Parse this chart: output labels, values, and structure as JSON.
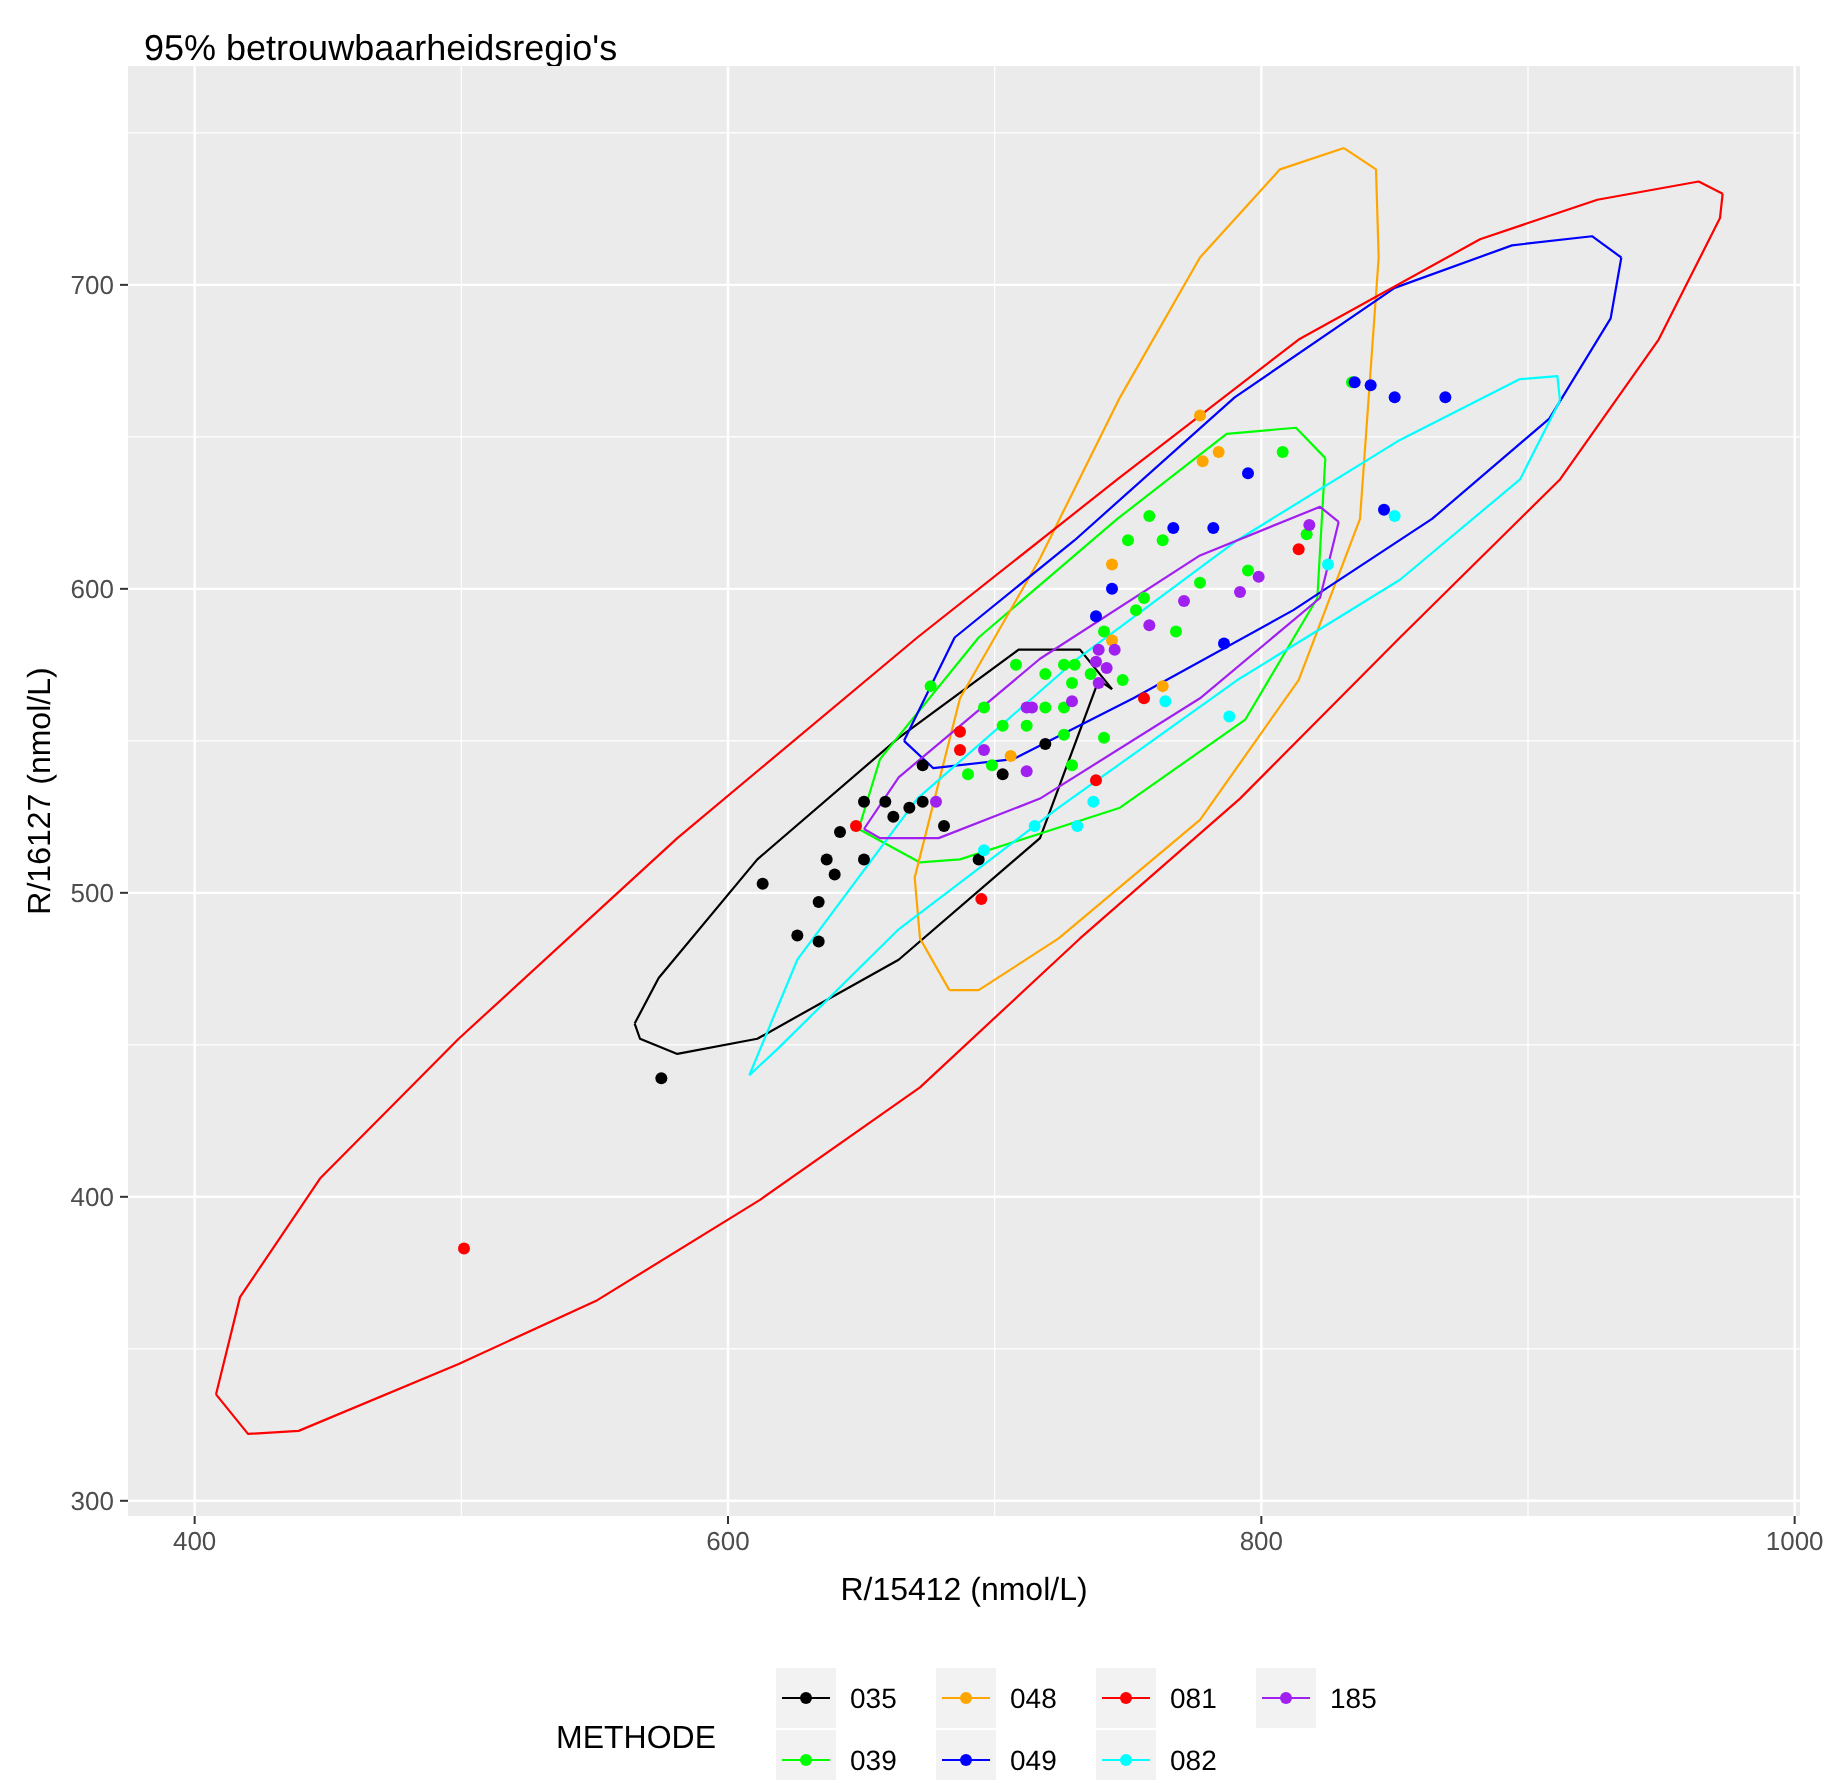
{
  "chart_data": {
    "type": "scatter",
    "title": "95% betrouwbaarheidsregio's",
    "xlabel": "R/15412 (nmol/L)",
    "ylabel": "R/16127 (nmol/L)",
    "legend_title": "METHODE",
    "legend": "bottom",
    "grid": true,
    "marker": "circle",
    "xlim": [
      375,
      1002
    ],
    "ylim": [
      295,
      772
    ],
    "xticks": [
      400,
      600,
      800,
      1000
    ],
    "yticks": [
      300,
      400,
      500,
      600,
      700
    ],
    "series": [
      {
        "name": "035",
        "color": "#000000",
        "x": [
          575,
          613,
          626,
          634,
          634,
          640,
          637,
          642,
          651,
          651,
          659,
          662,
          668,
          673,
          681,
          694,
          673,
          703,
          719
        ],
        "values": [
          439,
          503,
          486,
          484,
          497,
          506,
          511,
          520,
          511,
          530,
          530,
          525,
          528,
          530,
          522,
          511,
          542,
          539,
          549
        ]
      },
      {
        "name": "039",
        "color": "#00ff00",
        "x": [
          834,
          808,
          758,
          750,
          763,
          756,
          777,
          817,
          676,
          708,
          719,
          726,
          730,
          729,
          736,
          696,
          703,
          712,
          719,
          726,
          726,
          741,
          741,
          690,
          699,
          729,
          753,
          748,
          768,
          795
        ],
        "values": [
          668,
          645,
          624,
          616,
          616,
          597,
          602,
          618,
          568,
          575,
          572,
          575,
          575,
          569,
          572,
          561,
          555,
          555,
          561,
          561,
          552,
          551,
          586,
          539,
          542,
          542,
          593,
          570,
          586,
          606
        ]
      },
      {
        "name": "048",
        "color": "#ffa500",
        "x": [
          706,
          777,
          784,
          778,
          744,
          763,
          744
        ],
        "values": [
          545,
          657,
          645,
          642,
          608,
          568,
          583
        ]
      },
      {
        "name": "049",
        "color": "#0000ff",
        "x": [
          835,
          841,
          850,
          869,
          846,
          795,
          767,
          782,
          744,
          738,
          786
        ],
        "values": [
          668,
          667,
          663,
          663,
          626,
          638,
          620,
          620,
          600,
          591,
          582
        ]
      },
      {
        "name": "081",
        "color": "#ff0000",
        "x": [
          501,
          648,
          687,
          687,
          695,
          756,
          738,
          814
        ],
        "values": [
          383,
          522,
          553,
          547,
          498,
          564,
          537,
          613
        ]
      },
      {
        "name": "082",
        "color": "#00ffff",
        "x": [
          850,
          825,
          788,
          764,
          737,
          715,
          731,
          696
        ],
        "values": [
          624,
          608,
          558,
          563,
          530,
          522,
          522,
          514
        ]
      },
      {
        "name": "185",
        "color": "#a020f0",
        "x": [
          678,
          696,
          712,
          712,
          714,
          729,
          738,
          739,
          739,
          745,
          758,
          771,
          792,
          799,
          818,
          742
        ],
        "values": [
          530,
          547,
          540,
          561,
          561,
          563,
          576,
          580,
          569,
          580,
          588,
          596,
          599,
          604,
          621,
          574
        ]
      },
      {
        "type": "line",
        "marker": "none",
        "color": "#000000",
        "x": [
          565,
          567,
          581,
          611,
          664,
          717,
          739,
          744
        ],
        "values": [
          457,
          452,
          447,
          452,
          478,
          518,
          570,
          567
        ]
      },
      {
        "type": "line",
        "marker": "none",
        "color": "#000000",
        "x": [
          565,
          574,
          611,
          664,
          709,
          732,
          744
        ],
        "values": [
          457,
          472,
          511,
          551,
          580,
          580,
          567
        ]
      },
      {
        "type": "line",
        "marker": "none",
        "color": "#00ff00",
        "x": [
          649,
          672,
          687,
          747,
          794,
          821,
          824
        ],
        "values": [
          521,
          510,
          511,
          528,
          557,
          597,
          643
        ]
      },
      {
        "type": "line",
        "marker": "none",
        "color": "#00ff00",
        "x": [
          649,
          657,
          694,
          746,
          787,
          813,
          824
        ],
        "values": [
          521,
          544,
          584,
          623,
          651,
          653,
          643
        ]
      },
      {
        "type": "line",
        "marker": "none",
        "color": "#ffa500",
        "x": [
          683,
          672,
          670,
          687,
          717,
          747,
          777,
          807,
          831
        ],
        "values": [
          468,
          485,
          505,
          564,
          610,
          663,
          709,
          738,
          745
        ]
      },
      {
        "type": "line",
        "marker": "none",
        "color": "#ffa500",
        "x": [
          683,
          694,
          724,
          777,
          814,
          837,
          844,
          843,
          831
        ],
        "values": [
          468,
          468,
          485,
          524,
          570,
          623,
          709,
          738,
          745
        ]
      },
      {
        "type": "line",
        "marker": "none",
        "color": "#0000ff",
        "x": [
          666,
          677,
          707,
          752,
          812,
          864,
          908,
          931,
          935
        ],
        "values": [
          550,
          541,
          544,
          564,
          593,
          623,
          656,
          689,
          709
        ]
      },
      {
        "type": "line",
        "marker": "none",
        "color": "#0000ff",
        "x": [
          666,
          685,
          730,
          790,
          850,
          894,
          924,
          935
        ],
        "values": [
          550,
          584,
          616,
          663,
          699,
          713,
          716,
          709
        ]
      },
      {
        "type": "line",
        "marker": "none",
        "color": "#ff0000",
        "x": [
          408,
          420,
          439,
          499,
          551,
          612,
          672,
          732,
          792,
          852,
          912,
          949,
          972,
          973
        ],
        "values": [
          335,
          322,
          323,
          345,
          366,
          399,
          436,
          485,
          531,
          584,
          636,
          682,
          722,
          730
        ]
      },
      {
        "type": "line",
        "marker": "none",
        "color": "#ff0000",
        "x": [
          408,
          417,
          447,
          499,
          581,
          671,
          746,
          814,
          882,
          926,
          964,
          973
        ],
        "values": [
          335,
          367,
          406,
          452,
          518,
          584,
          636,
          682,
          715,
          728,
          734,
          730
        ]
      },
      {
        "type": "line",
        "marker": "none",
        "color": "#00ffff",
        "x": [
          608,
          619,
          664,
          724,
          791,
          852,
          897,
          912
        ],
        "values": [
          440,
          449,
          488,
          528,
          570,
          603,
          636,
          662
        ]
      },
      {
        "type": "line",
        "marker": "none",
        "color": "#00ffff",
        "x": [
          608,
          626,
          671,
          731,
          791,
          852,
          897,
          911,
          912
        ],
        "values": [
          440,
          478,
          531,
          577,
          616,
          649,
          669,
          670,
          662
        ]
      },
      {
        "type": "line",
        "marker": "none",
        "color": "#a020f0",
        "x": [
          651,
          657,
          679,
          717,
          777,
          822,
          829
        ],
        "values": [
          521,
          518,
          518,
          531,
          564,
          597,
          622
        ]
      },
      {
        "type": "line",
        "marker": "none",
        "color": "#a020f0",
        "x": [
          651,
          664,
          717,
          777,
          822,
          829
        ],
        "values": [
          521,
          538,
          577,
          611,
          627,
          622
        ]
      }
    ]
  }
}
